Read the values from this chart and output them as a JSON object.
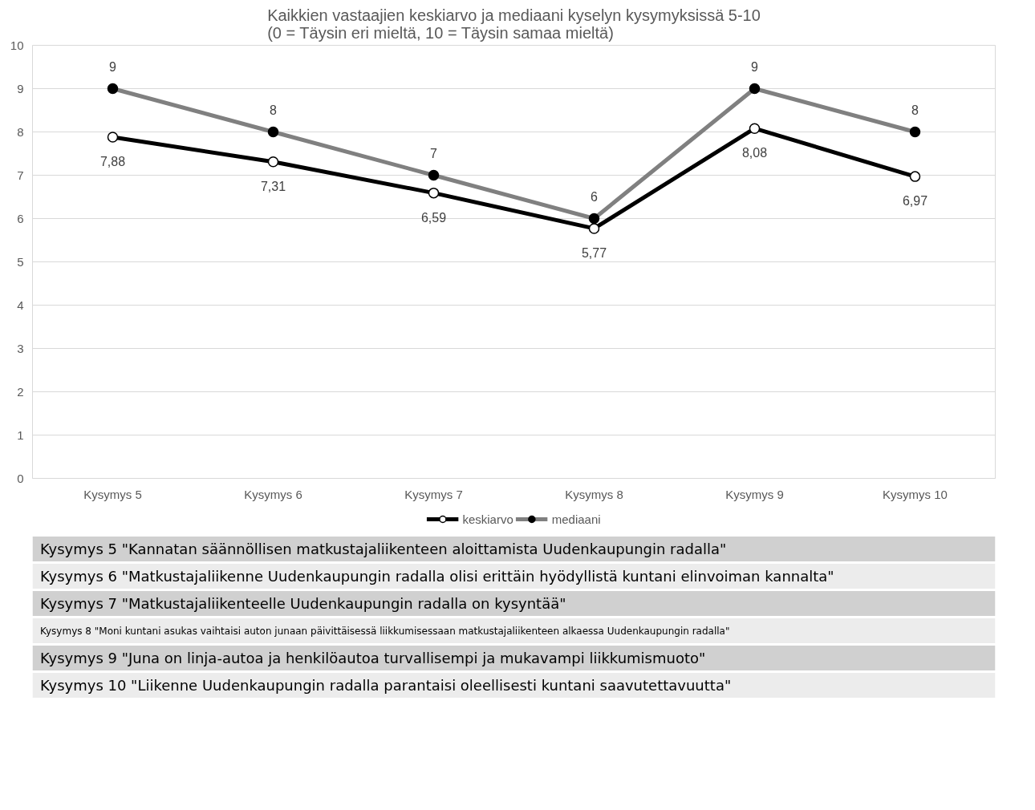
{
  "chart_data": {
    "type": "line",
    "title": "Kaikkien vastaajien keskiarvo ja mediaani kyselyn kysymyksissä 5-10\n(0 = Täysin eri mieltä, 10 = Täysin samaa mieltä)",
    "categories": [
      "Kysymys 5",
      "Kysymys 6",
      "Kysymys 7",
      "Kysymys 8",
      "Kysymys 9",
      "Kysymys 10"
    ],
    "series": [
      {
        "name": "keskiarvo",
        "color": "#000000",
        "values": [
          7.88,
          7.31,
          6.59,
          5.77,
          8.08,
          6.97
        ],
        "value_labels": [
          "7,88",
          "7,31",
          "6,59",
          "5,77",
          "8,08",
          "6,97"
        ]
      },
      {
        "name": "mediaani",
        "color": "#808080",
        "values": [
          9,
          8,
          7,
          6,
          9,
          8
        ],
        "value_labels": [
          "9",
          "8",
          "7",
          "6",
          "9",
          "8"
        ]
      }
    ],
    "ylim": [
      0,
      10
    ],
    "yticks": [
      0,
      1,
      2,
      3,
      4,
      5,
      6,
      7,
      8,
      9,
      10
    ],
    "grid": "y",
    "legend": "bottom",
    "marker": "circle",
    "line_style": "solid",
    "annotations": [
      "Kysymys 5   \"Kannatan säännöllisen matkustajaliikenteen aloittamista Uudenkaupungin radalla\"",
      "Kysymys 6   \"Matkustajaliikenne Uudenkaupungin radalla olisi erittäin hyödyllistä kuntani elinvoiman kannalta\"",
      "Kysymys 7   \"Matkustajaliikenteelle Uudenkaupungin radalla on kysyntää\"",
      "Kysymys 8   \"Moni kuntani asukas vaihtaisi auton junaan päivittäisessä liikkumisessaan matkustajaliikenteen alkaessa Uudenkaupungin radalla\"",
      "Kysymys 9   \"Juna on linja-autoa ja henkilöautoa turvallisempi ja mukavampi liikkumismuoto\"",
      "Kysymys 10 \"Liikenne Uudenkaupungin radalla parantaisi oleellisesti kuntani saavutettavuutta\""
    ]
  }
}
